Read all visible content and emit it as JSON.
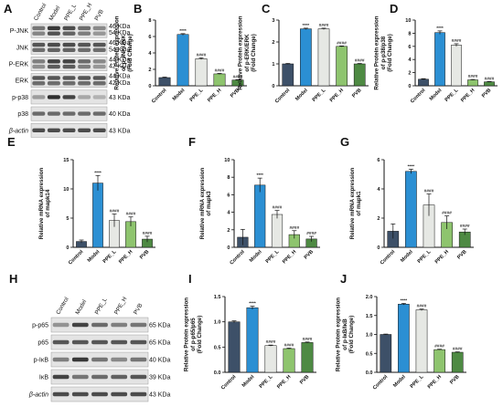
{
  "colors": {
    "Control": "#3d5068",
    "Model": "#2b8fd3",
    "PPE_L": "#e6e8e4",
    "PPE_H": "#8ec46e",
    "PVB": "#4e8a43",
    "axis": "#111111",
    "band": "#1a1a1a"
  },
  "blots": [
    {
      "letter": "A",
      "lanes": [
        "Control",
        "Model",
        "PPE_L",
        "PPE_H",
        "PVB"
      ],
      "rows": [
        {
          "label": "P-JNK",
          "kda": [
            "46 KDa",
            "54 KDa"
          ],
          "bands": [
            0.55,
            0.85,
            0.75,
            0.6,
            0.45
          ]
        },
        {
          "label": "JNK",
          "kda": [
            "46 KDa",
            "54 KDa"
          ],
          "bands": [
            0.7,
            0.75,
            0.75,
            0.7,
            0.7
          ]
        },
        {
          "label": "P-ERK",
          "kda": [
            "44 KDa",
            "42 KDa"
          ],
          "bands": [
            0.5,
            0.8,
            0.8,
            0.6,
            0.45
          ]
        },
        {
          "label": "ERK",
          "kda": [
            "44 KDa",
            "42 KDa"
          ],
          "bands": [
            0.7,
            0.7,
            0.7,
            0.7,
            0.7
          ]
        },
        {
          "label": "p-p38",
          "kda": [
            "43 KDa"
          ],
          "bands": [
            0.35,
            0.9,
            0.8,
            0.3,
            0.25
          ]
        },
        {
          "label": "p38",
          "kda": [
            "40 KDa"
          ],
          "bands": [
            0.6,
            0.6,
            0.6,
            0.6,
            0.6
          ]
        },
        {
          "label": "β-actin",
          "kda": [
            "43 KDa"
          ],
          "bands": [
            0.75,
            0.75,
            0.75,
            0.75,
            0.75
          ]
        }
      ]
    },
    {
      "letter": "H",
      "lanes": [
        "Control",
        "Model",
        "PPE_L",
        "PPE_H",
        "PVB"
      ],
      "rows": [
        {
          "label": "p-p65",
          "kda": [
            "65 KDa"
          ],
          "bands": [
            0.4,
            0.8,
            0.6,
            0.5,
            0.55
          ]
        },
        {
          "label": "p65",
          "kda": [
            "65 KDa"
          ],
          "bands": [
            0.7,
            0.7,
            0.7,
            0.7,
            0.7
          ]
        },
        {
          "label": "p-IκB",
          "kda": [
            "40 KDa"
          ],
          "bands": [
            0.5,
            0.85,
            0.55,
            0.45,
            0.55
          ]
        },
        {
          "label": "IκB",
          "kda": [
            "39 KDa"
          ],
          "bands": [
            0.8,
            0.55,
            0.6,
            0.65,
            0.7
          ]
        },
        {
          "label": "β-actin",
          "kda": [
            "43 KDa"
          ],
          "bands": [
            0.75,
            0.75,
            0.75,
            0.75,
            0.75
          ]
        }
      ]
    }
  ],
  "chart_data": [
    {
      "letter": "B",
      "type": "bar",
      "categories": [
        "Control",
        "Model",
        "PPE_L",
        "PPE_H",
        "PVB"
      ],
      "values": [
        1.0,
        6.25,
        3.3,
        1.45,
        0.7
      ],
      "errors": [
        0.06,
        0.1,
        0.1,
        0.06,
        0.05
      ],
      "sig": [
        "",
        "****",
        "####",
        "####",
        "####"
      ],
      "ylabel": [
        "Relative Protein expression",
        "of p-JNK/JNK",
        "(Fold Change)"
      ],
      "ylim": [
        0,
        8
      ],
      "yticks": [
        0,
        2,
        4,
        6,
        8
      ]
    },
    {
      "letter": "C",
      "type": "bar",
      "categories": [
        "Control",
        "Model",
        "PPE_L",
        "PPE_H",
        "PVB"
      ],
      "values": [
        1.0,
        2.6,
        2.6,
        1.8,
        1.0
      ],
      "errors": [
        0.02,
        0.03,
        0.03,
        0.02,
        0.02
      ],
      "sig": [
        "",
        "****",
        "####",
        "####",
        "####"
      ],
      "ylabel": [
        "Relative Protein expression",
        "of p-ERK/ERK",
        "(Fold Change)"
      ],
      "ylim": [
        0,
        3
      ],
      "yticks": [
        0,
        1,
        2,
        3
      ]
    },
    {
      "letter": "D",
      "type": "bar",
      "categories": [
        "Control",
        "Model",
        "PPE_L",
        "PPE_H",
        "PVB"
      ],
      "values": [
        1.0,
        8.1,
        6.2,
        0.9,
        0.6
      ],
      "errors": [
        0.08,
        0.25,
        0.2,
        0.06,
        0.05
      ],
      "sig": [
        "",
        "****",
        "####",
        "####",
        "####"
      ],
      "ylabel": [
        "Relative Protein expression",
        "of p-p38/p38",
        "(Fold Change)"
      ],
      "ylim": [
        0,
        10
      ],
      "yticks": [
        0,
        2,
        4,
        6,
        8,
        10
      ]
    },
    {
      "letter": "E",
      "type": "bar",
      "categories": [
        "Control",
        "Model",
        "PPE_L",
        "PPE_H",
        "PVB"
      ],
      "values": [
        1.0,
        11.0,
        4.6,
        4.4,
        1.4
      ],
      "errors": [
        0.25,
        1.3,
        1.1,
        0.8,
        0.5
      ],
      "sig": [
        "",
        "****",
        "####",
        "####",
        "####"
      ],
      "ylabel": [
        "Relative mRNA expression",
        "of mapk14"
      ],
      "ylim": [
        0,
        15
      ],
      "yticks": [
        0,
        5,
        10,
        15
      ]
    },
    {
      "letter": "F",
      "type": "bar",
      "categories": [
        "Control",
        "Model",
        "PPE_L",
        "PPE_H",
        "PVB"
      ],
      "values": [
        1.15,
        7.1,
        3.75,
        1.45,
        0.95
      ],
      "errors": [
        0.9,
        0.8,
        0.45,
        0.45,
        0.3
      ],
      "sig": [
        "",
        "****",
        "####",
        "####",
        "####"
      ],
      "ylabel": [
        "Relative mRNA expression",
        "of mapk3"
      ],
      "ylim": [
        0,
        10
      ],
      "yticks": [
        0,
        2,
        4,
        6,
        8,
        10
      ]
    },
    {
      "letter": "G",
      "type": "bar",
      "categories": [
        "Control",
        "Model",
        "PPE_L",
        "PPE_H",
        "PVB"
      ],
      "values": [
        1.1,
        5.2,
        2.9,
        1.7,
        1.05
      ],
      "errors": [
        0.5,
        0.15,
        0.75,
        0.45,
        0.2
      ],
      "sig": [
        "",
        "****",
        "####",
        "####",
        "####"
      ],
      "ylabel": [
        "Relative mRNA expression",
        "of mapk1"
      ],
      "ylim": [
        0,
        6
      ],
      "yticks": [
        0,
        2,
        4,
        6
      ]
    },
    {
      "letter": "I",
      "type": "bar",
      "categories": [
        "Control",
        "Model",
        "PPE_L",
        "PPE_H",
        "PVB"
      ],
      "values": [
        1.0,
        1.28,
        0.53,
        0.47,
        0.59
      ],
      "errors": [
        0.02,
        0.03,
        0.01,
        0.01,
        0.01
      ],
      "sig": [
        "",
        "****",
        "####",
        "####",
        "####"
      ],
      "ylabel": [
        "Relative Protein expression",
        "of p-p65/p65",
        "(Fold Change)"
      ],
      "ylim": [
        0,
        1.5
      ],
      "yticks": [
        0.0,
        0.5,
        1.0,
        1.5
      ]
    },
    {
      "letter": "J",
      "type": "bar",
      "categories": [
        "Control",
        "Model",
        "PPE_L",
        "PPE_H",
        "PVB"
      ],
      "values": [
        1.0,
        1.8,
        1.65,
        0.6,
        0.53
      ],
      "errors": [
        0.01,
        0.02,
        0.02,
        0.01,
        0.01
      ],
      "sig": [
        "",
        "****",
        "####",
        "####",
        "####"
      ],
      "ylabel": [
        "Relative Protein expression",
        "of p-IκB/IκB",
        "(Fold Change)"
      ],
      "ylim": [
        0,
        2.0
      ],
      "yticks": [
        0.0,
        0.5,
        1.0,
        1.5,
        2.0
      ]
    }
  ]
}
